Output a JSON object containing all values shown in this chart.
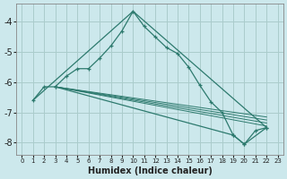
{
  "xlabel": "Humidex (Indice chaleur)",
  "bg_color": "#cce8ec",
  "grid_color": "#aacccc",
  "line_color": "#2d7a6e",
  "xlim": [
    -0.5,
    23.5
  ],
  "ylim": [
    -8.4,
    -3.4
  ],
  "yticks": [
    -8,
    -7,
    -6,
    -5,
    -4
  ],
  "xticks": [
    0,
    1,
    2,
    3,
    4,
    5,
    6,
    7,
    8,
    9,
    10,
    11,
    12,
    13,
    14,
    15,
    16,
    17,
    18,
    19,
    20,
    21,
    22,
    23
  ],
  "main_curve": {
    "x": [
      1,
      2,
      3,
      4,
      5,
      6,
      7,
      8,
      9,
      10,
      11,
      12,
      13,
      14,
      15,
      16,
      17,
      18,
      19,
      20,
      21,
      22
    ],
    "y": [
      -6.6,
      -6.15,
      -6.15,
      -5.8,
      -5.55,
      -5.55,
      -5.2,
      -4.8,
      -4.3,
      -3.65,
      -4.15,
      -4.5,
      -4.85,
      -5.05,
      -5.5,
      -6.1,
      -6.65,
      -7.0,
      -7.75,
      -8.05,
      -7.6,
      -7.5
    ]
  },
  "line_left_to_peak": {
    "x": [
      1,
      10
    ],
    "y": [
      -6.6,
      -3.65
    ]
  },
  "line_peak_to_end": {
    "x": [
      10,
      22
    ],
    "y": [
      -3.65,
      -7.5
    ]
  },
  "flat_lines": [
    {
      "x": [
        3,
        22
      ],
      "y": [
        -6.15,
        -7.15
      ]
    },
    {
      "x": [
        3,
        22
      ],
      "y": [
        -6.15,
        -7.25
      ]
    },
    {
      "x": [
        3,
        22
      ],
      "y": [
        -6.15,
        -7.35
      ]
    },
    {
      "x": [
        3,
        22
      ],
      "y": [
        -6.15,
        -7.45
      ]
    }
  ],
  "bottom_line": {
    "x": [
      3,
      19,
      20,
      22
    ],
    "y": [
      -6.15,
      -7.75,
      -8.05,
      -7.5
    ]
  }
}
